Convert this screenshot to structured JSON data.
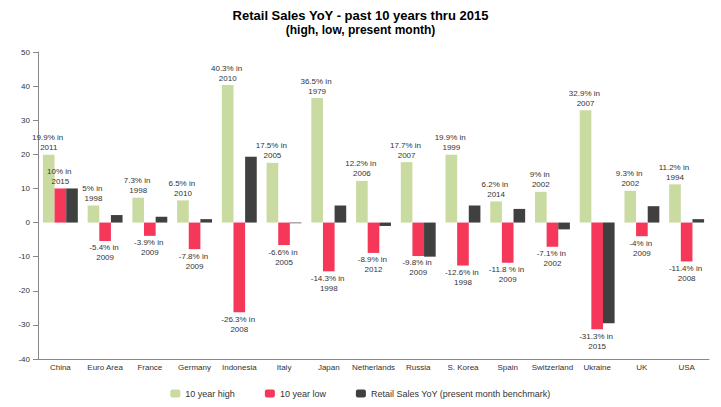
{
  "chart_data": {
    "type": "bar",
    "title": "Retail Sales YoY - past 10 years thru 2015",
    "subtitle": "(high, low, present month)",
    "categories": [
      "China",
      "Euro Area",
      "France",
      "Germany",
      "Indonesia",
      "Italy",
      "Japan",
      "Netherlands",
      "Russia",
      "S. Korea",
      "Spain",
      "Switzerland",
      "Ukraine",
      "UK",
      "USA"
    ],
    "series": [
      {
        "name": "10 year high",
        "color": "#c9dba0",
        "data_labels": true,
        "values": [
          19.9,
          5,
          7.3,
          6.5,
          40.3,
          17.5,
          36.5,
          12.2,
          17.7,
          19.9,
          6.2,
          9,
          32.9,
          9.3,
          11.2
        ],
        "value_labels": [
          "19.9% in 2011",
          "5% in 1998",
          "7.3% in 1998",
          "6.5% in 2010",
          "40.3% in 2010",
          "17.5% in 2005",
          "36.5% in 1979",
          "12.2% in 2006",
          "17.7% in 2007",
          "19.9% in 1999",
          "6.2% in 2014",
          "9% in 2002",
          "32.9% in 2007",
          "9.3% in 2002",
          "11.2% in 1994"
        ]
      },
      {
        "name": "10 year low",
        "color": "#f5375a",
        "data_labels": true,
        "values": [
          10,
          -5.4,
          -3.9,
          -7.8,
          -26.3,
          -6.6,
          -14.3,
          -8.9,
          -9.8,
          -12.6,
          -11.8,
          -7.1,
          -31.3,
          -4,
          -11.4
        ],
        "value_labels": [
          "10% in 2015",
          "-5.4% in 2009",
          "-3.9% in 2009",
          "-7.8% in 2009",
          "-26.3% in 2008",
          "-6.6% in 2005",
          "-14.3% in 1998",
          "-8.9% in 2012",
          "-9.8% in 2009",
          "-12.6% in 1998",
          "-11.8 % in 2009",
          "-7.1% in 2002",
          "-31.3% in 2015",
          "-4% in 2009",
          "-11.4% in 2008"
        ]
      },
      {
        "name": "Retail Sales YoY (present month benchmark)",
        "color": "#404040",
        "data_labels": false,
        "values": [
          10,
          2.2,
          1.7,
          1,
          19.3,
          -0.2,
          5,
          -1,
          -10,
          5,
          4,
          -2,
          -29.5,
          4.8,
          1
        ]
      }
    ],
    "ylim": [
      -40,
      50
    ],
    "yticks": [
      -40,
      -30,
      -20,
      -10,
      0,
      10,
      20,
      30,
      40,
      50
    ],
    "grid": false,
    "legend": "bottom"
  }
}
